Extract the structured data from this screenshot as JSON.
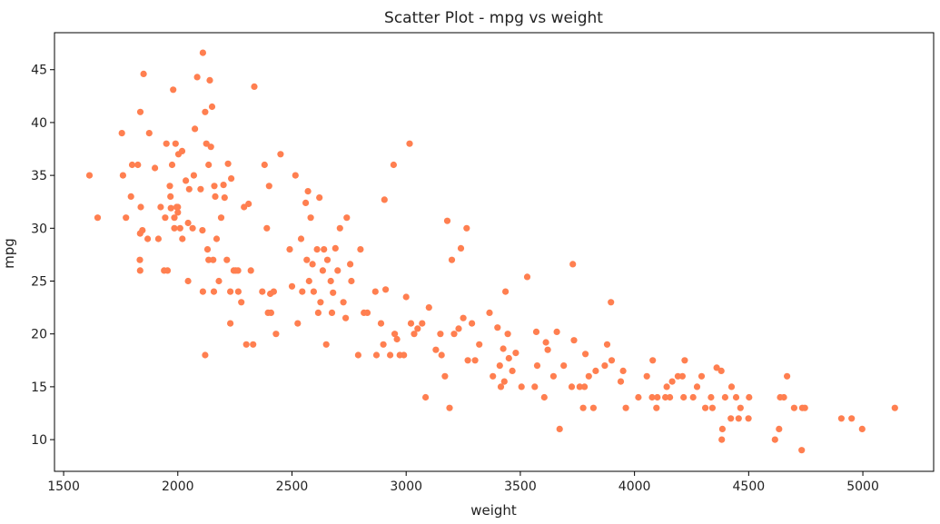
{
  "chart_data": {
    "type": "scatter",
    "title": "Scatter Plot - mpg vs weight",
    "xlabel": "weight",
    "ylabel": "mpg",
    "xlim": [
      1460,
      5310
    ],
    "ylim": [
      7,
      48.5
    ],
    "xticks": [
      1500,
      2000,
      2500,
      3000,
      3500,
      4000,
      4500,
      5000
    ],
    "yticks": [
      10,
      15,
      20,
      25,
      30,
      35,
      40,
      45
    ],
    "grid": false,
    "legend": "none",
    "marker_color": "#FF7F50",
    "points": [
      [
        1613,
        35
      ],
      [
        1649,
        31
      ],
      [
        1755,
        39
      ],
      [
        1760,
        35
      ],
      [
        1773,
        31
      ],
      [
        1795,
        33
      ],
      [
        1800,
        36
      ],
      [
        1825,
        36
      ],
      [
        1835,
        29.5
      ],
      [
        1834,
        27
      ],
      [
        1835,
        26
      ],
      [
        1836,
        41
      ],
      [
        1838,
        32
      ],
      [
        1845,
        29.8
      ],
      [
        1850,
        44.6
      ],
      [
        1868,
        29
      ],
      [
        1875,
        39
      ],
      [
        1900,
        35.7
      ],
      [
        1915,
        29
      ],
      [
        1925,
        32
      ],
      [
        1940,
        26
      ],
      [
        1945,
        31
      ],
      [
        1950,
        38
      ],
      [
        1955,
        26
      ],
      [
        1965,
        34
      ],
      [
        1968,
        33
      ],
      [
        1970,
        31.9
      ],
      [
        1975,
        36
      ],
      [
        1980,
        43.1
      ],
      [
        1985,
        31
      ],
      [
        1985,
        30
      ],
      [
        1990,
        38
      ],
      [
        1995,
        32
      ],
      [
        2000,
        32
      ],
      [
        2000,
        31.5
      ],
      [
        2003,
        37
      ],
      [
        2010,
        30
      ],
      [
        2019,
        37.3
      ],
      [
        2020,
        29
      ],
      [
        2035,
        34.5
      ],
      [
        2045,
        25
      ],
      [
        2045,
        30.5
      ],
      [
        2050,
        33.7
      ],
      [
        2065,
        30
      ],
      [
        2070,
        35
      ],
      [
        2075,
        39.4
      ],
      [
        2085,
        44.3
      ],
      [
        2100,
        33.7
      ],
      [
        2108,
        29.8
      ],
      [
        2110,
        24
      ],
      [
        2110,
        46.6
      ],
      [
        2120,
        18
      ],
      [
        2120,
        41
      ],
      [
        2125,
        38
      ],
      [
        2130,
        28
      ],
      [
        2135,
        27
      ],
      [
        2135,
        36
      ],
      [
        2140,
        44
      ],
      [
        2145,
        37.7
      ],
      [
        2150,
        41.5
      ],
      [
        2155,
        27
      ],
      [
        2158,
        24
      ],
      [
        2160,
        34
      ],
      [
        2164,
        33
      ],
      [
        2170,
        29
      ],
      [
        2180,
        25
      ],
      [
        2190,
        31
      ],
      [
        2200,
        34.1
      ],
      [
        2205,
        32.9
      ],
      [
        2215,
        27
      ],
      [
        2220,
        36.1
      ],
      [
        2230,
        21
      ],
      [
        2230,
        24
      ],
      [
        2234,
        34.7
      ],
      [
        2245,
        26
      ],
      [
        2254,
        26
      ],
      [
        2264,
        26
      ],
      [
        2265,
        24
      ],
      [
        2278,
        23
      ],
      [
        2290,
        32
      ],
      [
        2300,
        19
      ],
      [
        2310,
        32.3
      ],
      [
        2320,
        26
      ],
      [
        2330,
        19
      ],
      [
        2335,
        43.4
      ],
      [
        2370,
        24
      ],
      [
        2380,
        36
      ],
      [
        2390,
        30
      ],
      [
        2395,
        22
      ],
      [
        2400,
        34
      ],
      [
        2405,
        23.8
      ],
      [
        2408,
        22
      ],
      [
        2420,
        24
      ],
      [
        2430,
        20
      ],
      [
        2450,
        37
      ],
      [
        2490,
        28
      ],
      [
        2500,
        24.5
      ],
      [
        2515,
        35
      ],
      [
        2525,
        21
      ],
      [
        2540,
        29
      ],
      [
        2545,
        24
      ],
      [
        2560,
        32.4
      ],
      [
        2565,
        27
      ],
      [
        2570,
        33.5
      ],
      [
        2575,
        25
      ],
      [
        2582,
        31
      ],
      [
        2590,
        26.6
      ],
      [
        2595,
        24
      ],
      [
        2610,
        28
      ],
      [
        2615,
        22
      ],
      [
        2620,
        32.9
      ],
      [
        2625,
        23
      ],
      [
        2635,
        26
      ],
      [
        2640,
        28
      ],
      [
        2650,
        19
      ],
      [
        2655,
        27
      ],
      [
        2670,
        25
      ],
      [
        2675,
        22
      ],
      [
        2680,
        23.9
      ],
      [
        2690,
        28.1
      ],
      [
        2700,
        26
      ],
      [
        2710,
        30
      ],
      [
        2725,
        23
      ],
      [
        2735,
        21.5
      ],
      [
        2740,
        31
      ],
      [
        2755,
        26.6
      ],
      [
        2760,
        25
      ],
      [
        2790,
        18
      ],
      [
        2800,
        28
      ],
      [
        2815,
        22
      ],
      [
        2830,
        22
      ],
      [
        2865,
        24
      ],
      [
        2870,
        18
      ],
      [
        2890,
        21
      ],
      [
        2900,
        19
      ],
      [
        2905,
        32.7
      ],
      [
        2910,
        24.2
      ],
      [
        2930,
        18
      ],
      [
        2945,
        36
      ],
      [
        2950,
        20
      ],
      [
        2960,
        19.5
      ],
      [
        2972,
        18
      ],
      [
        2990,
        18
      ],
      [
        3000,
        23.5
      ],
      [
        3015,
        38
      ],
      [
        3021,
        21
      ],
      [
        3035,
        20
      ],
      [
        3050,
        20.5
      ],
      [
        3070,
        21
      ],
      [
        3085,
        14
      ],
      [
        3100,
        22.5
      ],
      [
        3130,
        18.5
      ],
      [
        3150,
        20
      ],
      [
        3155,
        18
      ],
      [
        3170,
        16
      ],
      [
        3180,
        30.7
      ],
      [
        3190,
        13
      ],
      [
        3200,
        27
      ],
      [
        3210,
        20
      ],
      [
        3230,
        20.5
      ],
      [
        3240,
        28.1
      ],
      [
        3250,
        21.5
      ],
      [
        3265,
        30
      ],
      [
        3270,
        17.5
      ],
      [
        3288,
        21
      ],
      [
        3302,
        17.5
      ],
      [
        3320,
        19
      ],
      [
        3365,
        22
      ],
      [
        3380,
        16
      ],
      [
        3400,
        20.6
      ],
      [
        3410,
        17
      ],
      [
        3415,
        15
      ],
      [
        3425,
        18.6
      ],
      [
        3430,
        15.5
      ],
      [
        3435,
        24
      ],
      [
        3445,
        20
      ],
      [
        3450,
        17.7
      ],
      [
        3465,
        16.5
      ],
      [
        3480,
        18.2
      ],
      [
        3505,
        15
      ],
      [
        3530,
        25.4
      ],
      [
        3563,
        15
      ],
      [
        3570,
        20.2
      ],
      [
        3574,
        17
      ],
      [
        3605,
        14
      ],
      [
        3612,
        19.2
      ],
      [
        3620,
        18.5
      ],
      [
        3645,
        16
      ],
      [
        3660,
        20.2
      ],
      [
        3672,
        11
      ],
      [
        3690,
        17
      ],
      [
        3725,
        15
      ],
      [
        3730,
        26.6
      ],
      [
        3735,
        19.4
      ],
      [
        3760,
        15
      ],
      [
        3775,
        13
      ],
      [
        3781,
        15
      ],
      [
        3785,
        18.1
      ],
      [
        3800,
        16
      ],
      [
        3820,
        13
      ],
      [
        3830,
        16.5
      ],
      [
        3870,
        17
      ],
      [
        3880,
        19
      ],
      [
        3897,
        23
      ],
      [
        3900,
        17.5
      ],
      [
        3940,
        15.5
      ],
      [
        3950,
        16.5
      ],
      [
        3962,
        13
      ],
      [
        4017,
        14
      ],
      [
        4054,
        16
      ],
      [
        4077,
        14
      ],
      [
        4080,
        17.5
      ],
      [
        4096,
        13
      ],
      [
        4100,
        14
      ],
      [
        4135,
        14
      ],
      [
        4141,
        15
      ],
      [
        4155,
        14
      ],
      [
        4165,
        15.5
      ],
      [
        4190,
        16
      ],
      [
        4210,
        16
      ],
      [
        4215,
        14
      ],
      [
        4220,
        17.5
      ],
      [
        4257,
        14
      ],
      [
        4274,
        15
      ],
      [
        4294,
        16
      ],
      [
        4310,
        13
      ],
      [
        4335,
        14
      ],
      [
        4341,
        13
      ],
      [
        4360,
        16.8
      ],
      [
        4380,
        16.5
      ],
      [
        4382,
        10
      ],
      [
        4385,
        11
      ],
      [
        4397,
        14
      ],
      [
        4422,
        12
      ],
      [
        4425,
        15
      ],
      [
        4445,
        14
      ],
      [
        4456,
        12
      ],
      [
        4464,
        13
      ],
      [
        4499,
        12
      ],
      [
        4502,
        14
      ],
      [
        4615,
        10
      ],
      [
        4633,
        11
      ],
      [
        4638,
        14
      ],
      [
        4654,
        14
      ],
      [
        4668,
        16
      ],
      [
        4699,
        13
      ],
      [
        4732,
        9
      ],
      [
        4735,
        13
      ],
      [
        4746,
        13
      ],
      [
        4906,
        12
      ],
      [
        4951,
        12
      ],
      [
        4997,
        11
      ],
      [
        5140,
        13
      ]
    ]
  }
}
